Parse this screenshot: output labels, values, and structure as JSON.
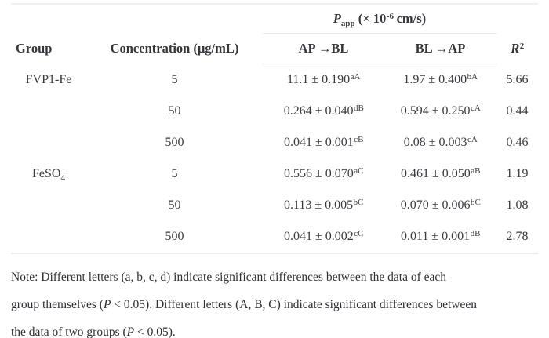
{
  "colors": {
    "text": "#36353b",
    "rule_light": "#e9e9e9",
    "rule_outer": "#ececec",
    "background": "#ffffff"
  },
  "table": {
    "papp_header": {
      "p": "P",
      "sub": "app",
      "mid": " (× 10",
      "sup": "-6",
      "end": " cm/s)"
    },
    "columns": {
      "group": "Group",
      "concentration": "Concentration (μg/mL)",
      "ap_bl": "AP →BL",
      "bl_ap": "BL →AP",
      "r2": {
        "base": "R",
        "sup": "2"
      }
    },
    "rows": [
      {
        "group": {
          "base": "FVP1-Fe",
          "sub": ""
        },
        "concentration": "5",
        "ap_bl": {
          "value": "11.1 ± 0.190",
          "sup": "aA"
        },
        "bl_ap": {
          "value": "1.97 ± 0.400",
          "sup": "bA"
        },
        "r2": "5.66"
      },
      {
        "group": {
          "base": "",
          "sub": ""
        },
        "concentration": "50",
        "ap_bl": {
          "value": "0.264 ± 0.040",
          "sup": "dB"
        },
        "bl_ap": {
          "value": "0.594 ± 0.250",
          "sup": "cA"
        },
        "r2": "0.44"
      },
      {
        "group": {
          "base": "",
          "sub": ""
        },
        "concentration": "500",
        "ap_bl": {
          "value": "0.041 ± 0.001",
          "sup": "cB"
        },
        "bl_ap": {
          "value": "0.08 ± 0.003",
          "sup": "cA"
        },
        "r2": "0.46"
      },
      {
        "group": {
          "base": "FeSO",
          "sub": "4"
        },
        "concentration": "5",
        "ap_bl": {
          "value": "0.556 ± 0.070",
          "sup": "aC"
        },
        "bl_ap": {
          "value": "0.461 ± 0.050",
          "sup": "aB"
        },
        "r2": "1.19"
      },
      {
        "group": {
          "base": "",
          "sub": ""
        },
        "concentration": "50",
        "ap_bl": {
          "value": "0.113 ± 0.005",
          "sup": "bC"
        },
        "bl_ap": {
          "value": "0.070 ± 0.006",
          "sup": "bC"
        },
        "r2": "1.08"
      },
      {
        "group": {
          "base": "",
          "sub": ""
        },
        "concentration": "500",
        "ap_bl": {
          "value": "0.041 ± 0.002",
          "sup": "cC"
        },
        "bl_ap": {
          "value": "0.011 ± 0.001",
          "sup": "dB"
        },
        "r2": "2.78"
      }
    ]
  },
  "note": {
    "line1": "Note: Different letters (a, b, c, d) indicate significant differences between the data of each",
    "line2_pre": "group themselves (",
    "line2_p": "P",
    "line2_post": " < 0.05). Different letters (A, B, C) indicate significant differences between",
    "line3_pre": "the data of two groups (",
    "line3_p": "P",
    "line3_post": " < 0.05)."
  }
}
